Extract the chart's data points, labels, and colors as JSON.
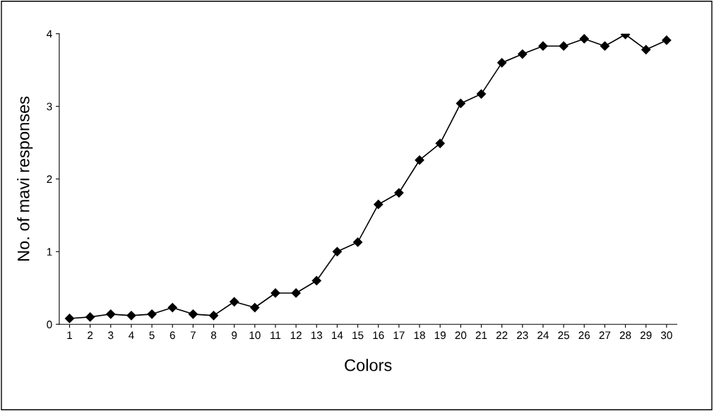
{
  "chart_data": {
    "type": "line",
    "xlabel": "Colors",
    "ylabel": "No. of mavi responses",
    "categories": [
      "1",
      "2",
      "3",
      "4",
      "5",
      "6",
      "7",
      "8",
      "9",
      "10",
      "11",
      "12",
      "13",
      "14",
      "15",
      "16",
      "17",
      "18",
      "19",
      "20",
      "21",
      "22",
      "23",
      "24",
      "25",
      "26",
      "27",
      "28",
      "29",
      "30"
    ],
    "series": [
      {
        "color": "#000000",
        "values": [
          0.08,
          0.1,
          0.14,
          0.12,
          0.14,
          0.23,
          0.14,
          0.12,
          0.31,
          0.23,
          0.43,
          0.43,
          0.6,
          1.0,
          1.13,
          1.65,
          1.81,
          2.26,
          2.49,
          3.04,
          3.17,
          3.6,
          3.72,
          3.83,
          3.83,
          3.93,
          3.83,
          3.99,
          3.78,
          3.91
        ]
      }
    ],
    "ylim": [
      0,
      4
    ],
    "yticks": [
      0,
      1,
      2,
      3,
      4
    ],
    "grid": false,
    "legend": false,
    "marker": "diamond",
    "line_style": "solid"
  }
}
